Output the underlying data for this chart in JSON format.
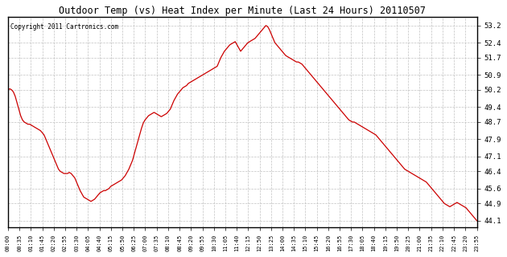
{
  "title": "Outdoor Temp (vs) Heat Index per Minute (Last 24 Hours) 20110507",
  "copyright": "Copyright 2011 Cartronics.com",
  "line_color": "#cc0000",
  "background_color": "#ffffff",
  "grid_color": "#bbbbbb",
  "y_ticks": [
    44.1,
    44.9,
    45.6,
    46.4,
    47.1,
    47.9,
    48.7,
    49.4,
    50.2,
    50.9,
    51.7,
    52.4,
    53.2
  ],
  "ylim": [
    43.8,
    53.6
  ],
  "x_tick_labels": [
    "00:00",
    "00:35",
    "01:10",
    "01:45",
    "02:20",
    "02:55",
    "03:30",
    "04:05",
    "04:40",
    "05:15",
    "05:50",
    "06:25",
    "07:00",
    "07:35",
    "08:10",
    "08:45",
    "09:20",
    "09:55",
    "10:30",
    "11:05",
    "11:40",
    "12:15",
    "12:50",
    "13:25",
    "14:00",
    "14:35",
    "15:10",
    "15:45",
    "16:20",
    "16:55",
    "17:30",
    "18:05",
    "18:40",
    "19:15",
    "19:50",
    "20:25",
    "21:00",
    "21:35",
    "22:10",
    "22:45",
    "23:20",
    "23:55"
  ],
  "curve": [
    50.2,
    50.25,
    50.2,
    50.1,
    49.9,
    49.6,
    49.3,
    49.0,
    48.8,
    48.7,
    48.65,
    48.6,
    48.6,
    48.55,
    48.5,
    48.45,
    48.4,
    48.35,
    48.3,
    48.2,
    48.1,
    47.9,
    47.7,
    47.5,
    47.3,
    47.1,
    46.9,
    46.7,
    46.5,
    46.4,
    46.35,
    46.3,
    46.3,
    46.3,
    46.35,
    46.3,
    46.2,
    46.1,
    45.9,
    45.7,
    45.5,
    45.35,
    45.2,
    45.15,
    45.1,
    45.05,
    45.0,
    45.05,
    45.1,
    45.2,
    45.3,
    45.4,
    45.45,
    45.5,
    45.5,
    45.55,
    45.6,
    45.7,
    45.75,
    45.8,
    45.85,
    45.9,
    45.95,
    46.0,
    46.1,
    46.2,
    46.35,
    46.5,
    46.7,
    46.9,
    47.2,
    47.5,
    47.8,
    48.1,
    48.4,
    48.65,
    48.8,
    48.9,
    49.0,
    49.05,
    49.1,
    49.15,
    49.1,
    49.05,
    49.0,
    48.95,
    49.0,
    49.05,
    49.1,
    49.2,
    49.3,
    49.5,
    49.7,
    49.85,
    50.0,
    50.1,
    50.2,
    50.3,
    50.35,
    50.4,
    50.5,
    50.55,
    50.6,
    50.65,
    50.7,
    50.75,
    50.8,
    50.85,
    50.9,
    50.95,
    51.0,
    51.05,
    51.1,
    51.15,
    51.2,
    51.25,
    51.3,
    51.5,
    51.7,
    51.85,
    52.0,
    52.1,
    52.2,
    52.3,
    52.35,
    52.4,
    52.45,
    52.3,
    52.15,
    52.0,
    52.1,
    52.2,
    52.3,
    52.4,
    52.45,
    52.5,
    52.55,
    52.6,
    52.7,
    52.8,
    52.9,
    53.0,
    53.1,
    53.2,
    53.15,
    53.0,
    52.8,
    52.6,
    52.4,
    52.3,
    52.2,
    52.1,
    52.0,
    51.9,
    51.8,
    51.75,
    51.7,
    51.65,
    51.6,
    51.55,
    51.5,
    51.5,
    51.45,
    51.4,
    51.3,
    51.2,
    51.1,
    51.0,
    50.9,
    50.8,
    50.7,
    50.6,
    50.5,
    50.4,
    50.3,
    50.2,
    50.1,
    50.0,
    49.9,
    49.8,
    49.7,
    49.6,
    49.5,
    49.4,
    49.3,
    49.2,
    49.1,
    49.0,
    48.9,
    48.8,
    48.75,
    48.7,
    48.7,
    48.65,
    48.6,
    48.55,
    48.5,
    48.45,
    48.4,
    48.35,
    48.3,
    48.25,
    48.2,
    48.15,
    48.1,
    48.0,
    47.9,
    47.8,
    47.7,
    47.6,
    47.5,
    47.4,
    47.3,
    47.2,
    47.1,
    47.0,
    46.9,
    46.8,
    46.7,
    46.6,
    46.5,
    46.45,
    46.4,
    46.35,
    46.3,
    46.25,
    46.2,
    46.15,
    46.1,
    46.05,
    46.0,
    45.95,
    45.9,
    45.8,
    45.7,
    45.6,
    45.5,
    45.4,
    45.3,
    45.2,
    45.1,
    45.0,
    44.9,
    44.85,
    44.8,
    44.75,
    44.8,
    44.85,
    44.9,
    44.95,
    44.9,
    44.85,
    44.8,
    44.75,
    44.7,
    44.6,
    44.5,
    44.4,
    44.3,
    44.2,
    44.1
  ]
}
